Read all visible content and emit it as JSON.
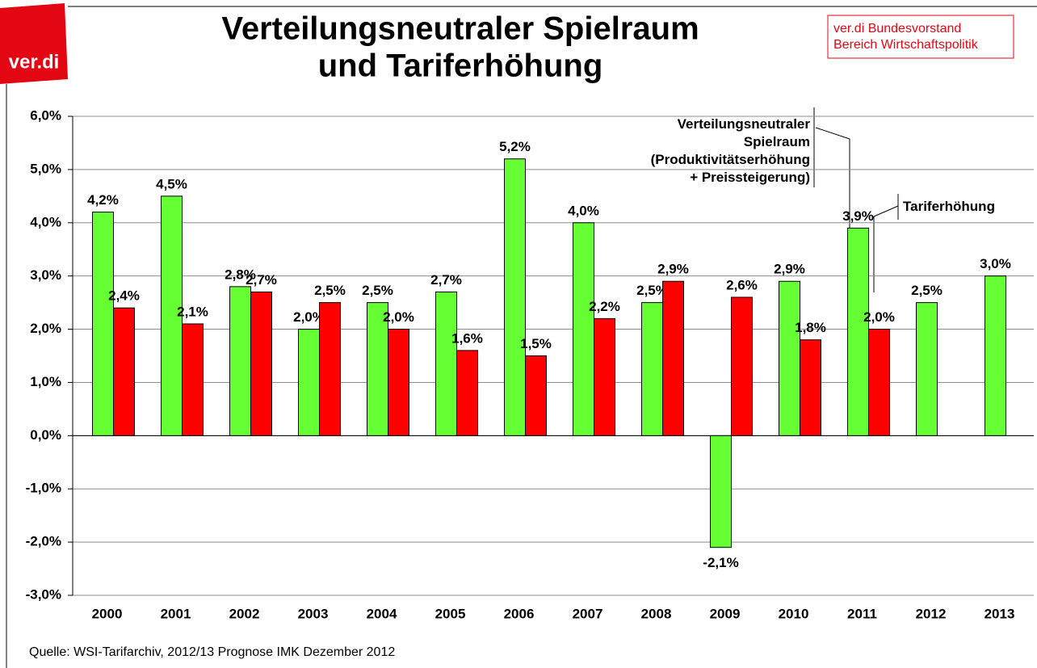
{
  "logo": "ver.di",
  "header_box": [
    "ver.di Bundesvorstand",
    "Bereich Wirtschaftspolitik"
  ],
  "source": "Quelle: WSI-Tarifarchiv, 2012/13 Prognose IMK Dezember 2012",
  "chart_data": {
    "type": "bar",
    "title": [
      "Verteilungsneutraler Spielraum",
      "und Tariferhöhung"
    ],
    "categories": [
      "2000",
      "2001",
      "2002",
      "2003",
      "2004",
      "2005",
      "2006",
      "2007",
      "2008",
      "2009",
      "2010",
      "2011",
      "2012",
      "2013"
    ],
    "series": [
      {
        "name": "Verteilungsneutraler\nSpielraum\n(Produktivitätserhöhung\n+ Preissteigerung)",
        "color": "#66ff33",
        "values": [
          4.2,
          4.5,
          2.8,
          2.0,
          2.5,
          2.7,
          5.2,
          4.0,
          2.5,
          -2.1,
          2.9,
          3.9,
          2.5,
          3.0
        ],
        "value_labels": [
          "4,2%",
          "4,5%",
          "2,8%",
          "2,0%",
          "2,5%",
          "2,7%",
          "5,2%",
          "4,0%",
          "2,5%",
          "-2,1%",
          "2,9%",
          "3,9%",
          "2,5%",
          "3,0%"
        ]
      },
      {
        "name": "Tariferhöhung",
        "color": "#ff0000",
        "values": [
          2.4,
          2.1,
          2.7,
          2.5,
          2.0,
          1.6,
          1.5,
          2.2,
          2.9,
          2.6,
          1.8,
          2.0,
          null,
          null
        ],
        "value_labels": [
          "2,4%",
          "2,1%",
          "2,7%",
          "2,5%",
          "2,0%",
          "1,6%",
          "1,5%",
          "2,2%",
          "2,9%",
          "2,6%",
          "1,8%",
          "2,0%",
          null,
          null
        ]
      }
    ],
    "ylim": [
      -3,
      6
    ],
    "yticks": [
      {
        "value": 6,
        "label": "6,0%"
      },
      {
        "value": 5,
        "label": "5,0%"
      },
      {
        "value": 4,
        "label": "4,0%"
      },
      {
        "value": 3,
        "label": "3,0%"
      },
      {
        "value": 2,
        "label": "2,0%"
      },
      {
        "value": 1,
        "label": "1,0%"
      },
      {
        "value": 0,
        "label": "0,0%"
      },
      {
        "value": -1,
        "label": "-1,0%"
      },
      {
        "value": -2,
        "label": "-2,0%"
      },
      {
        "value": -3,
        "label": "-3,0%"
      }
    ],
    "grid": true
  }
}
